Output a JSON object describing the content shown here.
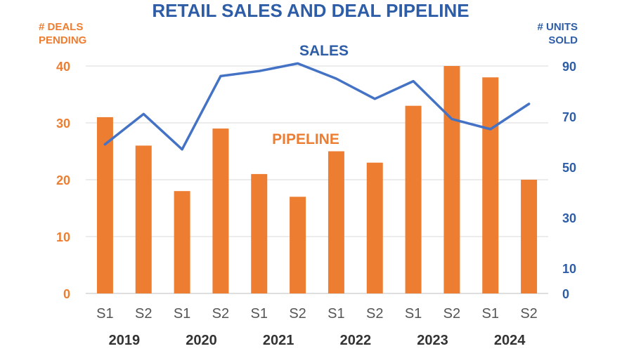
{
  "chart_data": {
    "type": "bar",
    "title": "RETAIL SALES AND DEAL PIPELINE",
    "categories": [
      "S1",
      "S2",
      "S1",
      "S2",
      "S1",
      "S2",
      "S1",
      "S2",
      "S1",
      "S2",
      "S1",
      "S2"
    ],
    "years": [
      "2019",
      "2020",
      "2021",
      "2022",
      "2023",
      "2024"
    ],
    "y_left": {
      "label_line1": "# DEALS",
      "label_line2": "PENDING",
      "ticks": [
        0,
        10,
        20,
        30,
        40
      ],
      "range": [
        0,
        40
      ]
    },
    "y_right": {
      "label_line1": "# UNITS",
      "label_line2": "SOLD",
      "ticks": [
        0,
        10,
        30,
        50,
        70,
        90
      ],
      "range": [
        0,
        90
      ]
    },
    "series": [
      {
        "name": "PIPELINE",
        "type": "bar",
        "axis": "left",
        "color": "#ED7D31",
        "values": [
          31,
          26,
          18,
          29,
          21,
          17,
          25,
          23,
          33,
          40,
          38,
          20
        ]
      },
      {
        "name": "SALES",
        "type": "line",
        "axis": "right",
        "color": "#4472C4",
        "values": [
          59,
          71,
          57,
          86,
          88,
          91,
          85,
          77,
          84,
          69,
          65,
          75
        ]
      }
    ],
    "grid": true
  }
}
